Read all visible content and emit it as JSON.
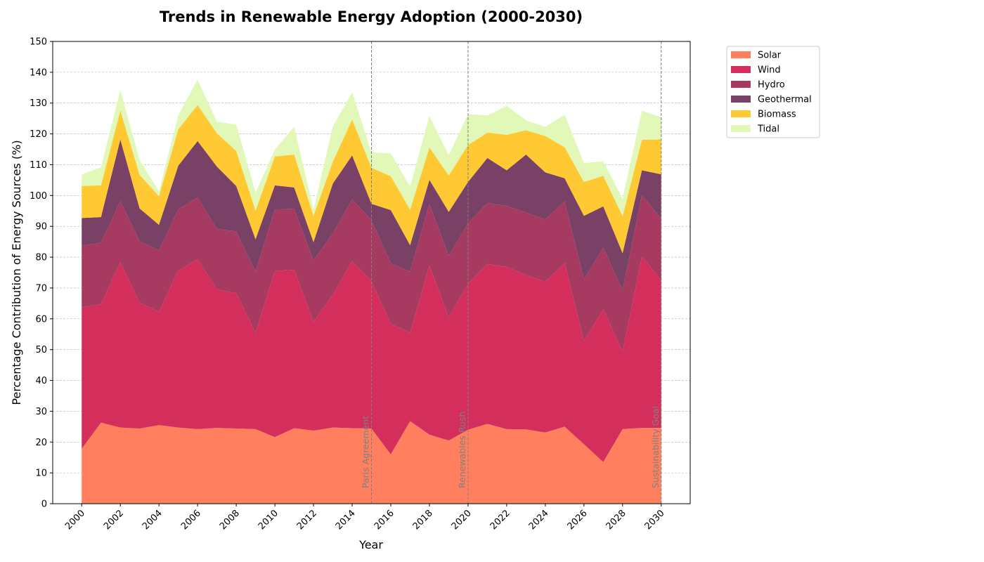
{
  "chart_data": {
    "type": "area",
    "stacked": true,
    "title": "Trends in Renewable Energy Adoption (2000-2030)",
    "xlabel": "Year",
    "ylabel": "Percentage Contribution of Energy Sources (%)",
    "xlim": [
      1998.5,
      2031.5
    ],
    "ylim": [
      0,
      150
    ],
    "x": [
      2000,
      2001,
      2002,
      2003,
      2004,
      2005,
      2006,
      2007,
      2008,
      2009,
      2010,
      2011,
      2012,
      2013,
      2014,
      2015,
      2016,
      2017,
      2018,
      2019,
      2020,
      2021,
      2022,
      2023,
      2024,
      2025,
      2026,
      2027,
      2028,
      2029,
      2030
    ],
    "x_ticks": [
      2000,
      2002,
      2004,
      2006,
      2008,
      2010,
      2012,
      2014,
      2016,
      2018,
      2020,
      2022,
      2024,
      2026,
      2028,
      2030
    ],
    "y_ticks": [
      0,
      10,
      20,
      30,
      40,
      50,
      60,
      70,
      80,
      90,
      100,
      110,
      120,
      130,
      140,
      150
    ],
    "grid": "y",
    "legend_position": "outside-right",
    "series": [
      {
        "name": "Solar",
        "color": "#FF7F5E",
        "values": [
          17.8,
          26.3,
          24.7,
          24.4,
          25.5,
          24.7,
          24.2,
          24.6,
          24.4,
          24.2,
          21.6,
          24.5,
          23.7,
          24.7,
          24.5,
          24.4,
          16.0,
          26.8,
          22.4,
          20.5,
          24.0,
          25.9,
          24.2,
          24.1,
          23.1,
          25.0,
          19.3,
          13.5,
          24.2,
          24.6,
          24.6
        ]
      },
      {
        "name": "Wind",
        "color": "#D42F5C",
        "values": [
          45.9,
          38.4,
          53.6,
          40.8,
          36.8,
          50.9,
          55.1,
          44.9,
          43.9,
          31.3,
          53.9,
          51.4,
          35.3,
          43.0,
          54.2,
          47.8,
          42.3,
          28.7,
          54.8,
          40.0,
          47.3,
          51.9,
          52.6,
          50.1,
          48.9,
          53.1,
          33.5,
          49.6,
          25.0,
          55.6,
          47.9
        ]
      },
      {
        "name": "Hydro",
        "color": "#A63A61",
        "values": [
          20.0,
          20.0,
          19.8,
          20.0,
          19.9,
          19.9,
          20.0,
          19.7,
          20.0,
          19.9,
          20.0,
          19.7,
          19.9,
          20.0,
          20.0,
          19.8,
          19.7,
          19.8,
          20.0,
          19.9,
          19.7,
          19.8,
          19.8,
          20.3,
          20.2,
          20.0,
          20.0,
          20.0,
          20.0,
          19.9,
          20.0
        ]
      },
      {
        "name": "Geothermal",
        "color": "#7A4167",
        "values": [
          9.0,
          8.3,
          20.1,
          10.6,
          8.3,
          14.2,
          18.4,
          20.2,
          14.8,
          10.4,
          7.8,
          7.0,
          6.0,
          16.2,
          14.3,
          5.3,
          17.3,
          8.6,
          7.9,
          14.3,
          13.4,
          14.6,
          11.6,
          18.8,
          15.3,
          7.5,
          20.6,
          13.4,
          12.1,
          8.1,
          14.4
        ]
      },
      {
        "name": "Biomass",
        "color": "#FFC933",
        "values": [
          10.4,
          10.3,
          9.4,
          10.9,
          9.3,
          11.8,
          11.7,
          10.8,
          11.4,
          9.3,
          9.4,
          10.7,
          8.5,
          7.1,
          11.7,
          11.7,
          11.0,
          11.5,
          10.5,
          11.8,
          12.0,
          8.2,
          11.5,
          7.9,
          11.8,
          10.1,
          11.0,
          9.9,
          12.0,
          9.9,
          11.3
        ]
      },
      {
        "name": "Tidal",
        "color": "#E2F8B8",
        "values": [
          3.7,
          5.9,
          6.6,
          4.8,
          1.5,
          4.6,
          8.2,
          3.8,
          8.5,
          5.9,
          2.2,
          9.0,
          2.1,
          11.4,
          8.8,
          5.0,
          7.4,
          7.5,
          10.2,
          6.6,
          10.0,
          5.6,
          9.4,
          3.2,
          3.0,
          10.5,
          6.1,
          4.7,
          5.7,
          9.4,
          7.2
        ]
      }
    ],
    "annotations": [
      {
        "x": 2015,
        "label": "Paris Agreement"
      },
      {
        "x": 2020,
        "label": "Renewables Rush"
      },
      {
        "x": 2030,
        "label": "Sustainability Goal"
      }
    ]
  }
}
